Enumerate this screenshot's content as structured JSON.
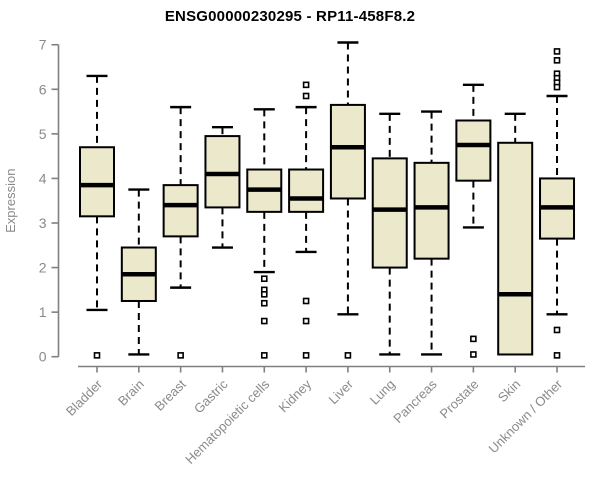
{
  "title": "ENSG00000230295 - RP11-458F8.2",
  "chart_data": {
    "type": "boxplot",
    "title": "ENSG00000230295 - RP11-458F8.2",
    "xlabel": "",
    "ylabel": "Expression",
    "ylim": [
      0,
      7
    ],
    "yticks": [
      0,
      1,
      2,
      3,
      4,
      5,
      6,
      7
    ],
    "grid": false,
    "legend": false,
    "categories": [
      "Bladder",
      "Brain",
      "Breast",
      "Gastric",
      "Hematopoietic cells",
      "Kidney",
      "Liver",
      "Lung",
      "Pancreas",
      "Prostate",
      "Skin",
      "Unknown / Other"
    ],
    "series": [
      {
        "name": "Bladder",
        "whisker_low": 1.05,
        "q1": 3.15,
        "median": 3.85,
        "q3": 4.7,
        "whisker_high": 6.3,
        "outliers": [
          0.03
        ]
      },
      {
        "name": "Brain",
        "whisker_low": 0.05,
        "q1": 1.25,
        "median": 1.85,
        "q3": 2.45,
        "whisker_high": 3.75,
        "outliers": []
      },
      {
        "name": "Breast",
        "whisker_low": 1.55,
        "q1": 2.7,
        "median": 3.4,
        "q3": 3.85,
        "whisker_high": 5.6,
        "outliers": [
          0.03
        ]
      },
      {
        "name": "Gastric",
        "whisker_low": 2.45,
        "q1": 3.35,
        "median": 4.1,
        "q3": 4.95,
        "whisker_high": 5.15,
        "outliers": []
      },
      {
        "name": "Hematopoietic cells",
        "whisker_low": 1.9,
        "q1": 3.25,
        "median": 3.75,
        "q3": 4.2,
        "whisker_high": 5.55,
        "outliers": [
          1.75,
          1.5,
          1.4,
          1.2,
          0.8,
          0.03
        ]
      },
      {
        "name": "Kidney",
        "whisker_low": 2.35,
        "q1": 3.25,
        "median": 3.55,
        "q3": 4.2,
        "whisker_high": 5.6,
        "outliers": [
          6.1,
          5.85,
          1.25,
          0.8,
          0.03
        ]
      },
      {
        "name": "Liver",
        "whisker_low": 0.95,
        "q1": 3.55,
        "median": 4.7,
        "q3": 5.65,
        "whisker_high": 7.05,
        "outliers": [
          0.03
        ]
      },
      {
        "name": "Lung",
        "whisker_low": 0.05,
        "q1": 2.0,
        "median": 3.3,
        "q3": 4.45,
        "whisker_high": 5.45,
        "outliers": []
      },
      {
        "name": "Pancreas",
        "whisker_low": 0.05,
        "q1": 2.2,
        "median": 3.35,
        "q3": 4.35,
        "whisker_high": 5.5,
        "outliers": []
      },
      {
        "name": "Prostate",
        "whisker_low": 2.9,
        "q1": 3.95,
        "median": 4.75,
        "q3": 5.3,
        "whisker_high": 6.1,
        "outliers": [
          0.4,
          0.05
        ]
      },
      {
        "name": "Skin",
        "whisker_low": 0.05,
        "q1": 0.05,
        "median": 1.4,
        "q3": 4.8,
        "whisker_high": 5.45,
        "outliers": []
      },
      {
        "name": "Unknown / Other",
        "whisker_low": 0.95,
        "q1": 2.65,
        "median": 3.35,
        "q3": 4.0,
        "whisker_high": 5.85,
        "outliers": [
          6.85,
          6.65,
          6.35,
          6.25,
          6.15,
          6.05,
          0.6,
          0.03
        ]
      }
    ],
    "colors": {
      "background": "#ffffff",
      "box_fill": "#ece8cc",
      "box_border": "#000000",
      "median": "#000000",
      "whisker": "#000000",
      "outlier_fill": "#ffffff",
      "axis": "#808080",
      "tick_label": "#8a8a8a",
      "title": "#000000"
    }
  }
}
